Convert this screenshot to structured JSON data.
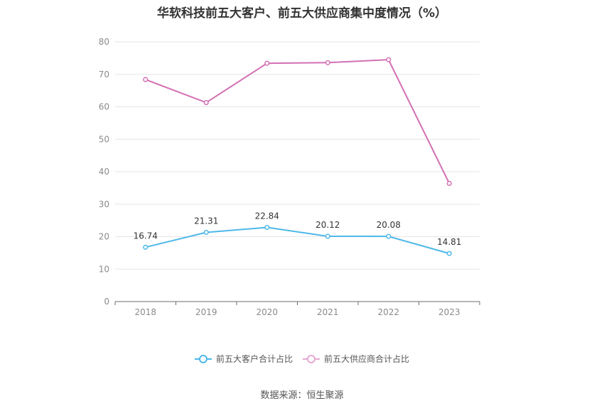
{
  "chart_data": {
    "type": "line",
    "title": "华软科技前五大客户、前五大供应商集中度情况（%）",
    "categories": [
      "2018",
      "2019",
      "2020",
      "2021",
      "2022",
      "2023"
    ],
    "ylim": [
      0,
      80
    ],
    "yticks": [
      0,
      10,
      20,
      30,
      40,
      50,
      60,
      70,
      80
    ],
    "grid": true,
    "legend_position": "bottom",
    "series": [
      {
        "name": "前五大客户合计占比",
        "color": "#4db8e8",
        "values": [
          16.74,
          21.31,
          22.84,
          20.12,
          20.08,
          14.81
        ],
        "labels": [
          "16.74",
          "21.31",
          "22.84",
          "20.12",
          "20.08",
          "14.81"
        ]
      },
      {
        "name": "前五大供应商合计占比",
        "color": "#d36fb3",
        "values": [
          68.4,
          61.3,
          73.4,
          73.6,
          74.5,
          36.4
        ]
      }
    ]
  },
  "source_text": "数据来源：恒生聚源"
}
